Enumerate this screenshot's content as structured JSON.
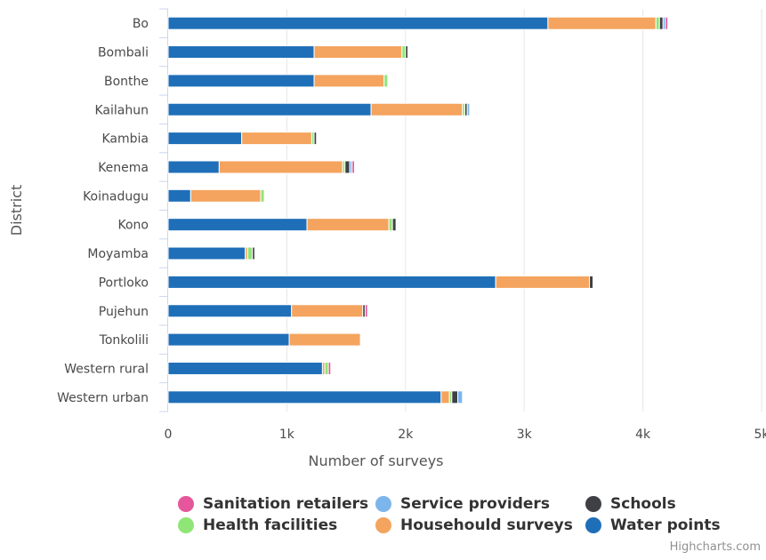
{
  "chart_data": {
    "type": "bar",
    "orientation": "horizontal",
    "stacked": true,
    "categories": [
      "Bo",
      "Bombali",
      "Bonthe",
      "Kailahun",
      "Kambia",
      "Kenema",
      "Koinadugu",
      "Kono",
      "Moyamba",
      "Portloko",
      "Pujehun",
      "Tonkolili",
      "Western rural",
      "Western urban"
    ],
    "series": [
      {
        "name": "Water points",
        "color": "#1f6fb8",
        "values": [
          3200,
          1230,
          1230,
          1710,
          620,
          430,
          190,
          1170,
          650,
          2760,
          1040,
          1020,
          1300,
          2300
        ]
      },
      {
        "name": "Househould surveys",
        "color": "#f4a45e",
        "values": [
          910,
          740,
          590,
          770,
          590,
          1040,
          590,
          690,
          20,
          790,
          600,
          600,
          20,
          70
        ]
      },
      {
        "name": "Health facilities",
        "color": "#90e577",
        "values": [
          30,
          30,
          30,
          20,
          20,
          20,
          30,
          30,
          40,
          0,
          0,
          0,
          30,
          20
        ]
      },
      {
        "name": "Schools",
        "color": "#3f3f46",
        "values": [
          30,
          20,
          0,
          20,
          20,
          40,
          0,
          30,
          20,
          30,
          20,
          0,
          0,
          50
        ]
      },
      {
        "name": "Service providers",
        "color": "#7cb5ec",
        "values": [
          20,
          0,
          0,
          20,
          0,
          20,
          0,
          0,
          0,
          0,
          0,
          0,
          0,
          40
        ]
      },
      {
        "name": "Sanitation retailers",
        "color": "#e5569a",
        "values": [
          20,
          0,
          0,
          0,
          0,
          20,
          0,
          0,
          0,
          0,
          20,
          0,
          20,
          0
        ]
      }
    ],
    "xlabel": "Number of surveys",
    "ylabel": "District",
    "xlim": [
      0,
      5000
    ],
    "xticks": [
      0,
      1000,
      2000,
      3000,
      4000,
      5000
    ],
    "xtick_labels": [
      "0",
      "1k",
      "2k",
      "3k",
      "4k",
      "5k"
    ],
    "grid": true,
    "legend_position": "bottom"
  },
  "legend": [
    {
      "label": "Sanitation retailers",
      "color": "#e5569a"
    },
    {
      "label": "Service providers",
      "color": "#7cb5ec"
    },
    {
      "label": "Schools",
      "color": "#3f3f46"
    },
    {
      "label": "Health facilities",
      "color": "#90e577"
    },
    {
      "label": "Househould surveys",
      "color": "#f4a45e"
    },
    {
      "label": "Water points",
      "color": "#1f6fb8"
    }
  ],
  "credits": "Highcharts.com"
}
